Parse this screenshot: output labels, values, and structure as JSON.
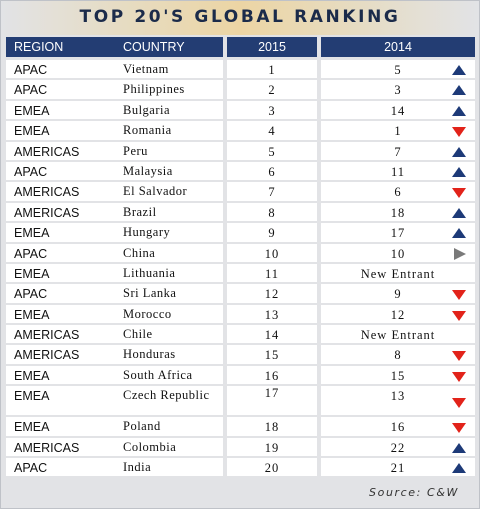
{
  "title": "TOP 20'S GLOBAL RANKING",
  "columns": {
    "region": "REGION",
    "country": "COUNTRY",
    "year_a": "2015",
    "year_b": "2014"
  },
  "colors": {
    "header_bg": "#233d73",
    "up": "#1d3a78",
    "down": "#e2231a",
    "same": "#7a7a7a"
  },
  "rows": [
    {
      "region": "APAC",
      "country": "Vietnam",
      "rank_2015": "1",
      "rank_2014": "5",
      "trend": "up-arrow-icon"
    },
    {
      "region": "APAC",
      "country": "Philippines",
      "rank_2015": "2",
      "rank_2014": "3",
      "trend": "up-arrow-icon"
    },
    {
      "region": "EMEA",
      "country": "Bulgaria",
      "rank_2015": "3",
      "rank_2014": "14",
      "trend": "up-arrow-icon"
    },
    {
      "region": "EMEA",
      "country": "Romania",
      "rank_2015": "4",
      "rank_2014": "1",
      "trend": "down-arrow-icon"
    },
    {
      "region": "AMERICAS",
      "country": "Peru",
      "rank_2015": "5",
      "rank_2014": "7",
      "trend": "up-arrow-icon"
    },
    {
      "region": "APAC",
      "country": "Malaysia",
      "rank_2015": "6",
      "rank_2014": "11",
      "trend": "up-arrow-icon"
    },
    {
      "region": "AMERICAS",
      "country": "El Salvador",
      "rank_2015": "7",
      "rank_2014": "6",
      "trend": "down-arrow-icon"
    },
    {
      "region": "AMERICAS",
      "country": "Brazil",
      "rank_2015": "8",
      "rank_2014": "18",
      "trend": "up-arrow-icon"
    },
    {
      "region": "EMEA",
      "country": "Hungary",
      "rank_2015": "9",
      "rank_2014": "17",
      "trend": "up-arrow-icon"
    },
    {
      "region": "APAC",
      "country": "China",
      "rank_2015": "10",
      "rank_2014": "10",
      "trend": "right-arrow-icon"
    },
    {
      "region": "EMEA",
      "country": "Lithuania",
      "rank_2015": "11",
      "rank_2014": "New Entrant",
      "trend": ""
    },
    {
      "region": "APAC",
      "country": "Sri Lanka",
      "rank_2015": "12",
      "rank_2014": "9",
      "trend": "down-arrow-icon"
    },
    {
      "region": "EMEA",
      "country": "Morocco",
      "rank_2015": "13",
      "rank_2014": "12",
      "trend": "down-arrow-icon"
    },
    {
      "region": "AMERICAS",
      "country": "Chile",
      "rank_2015": "14",
      "rank_2014": "New Entrant",
      "trend": ""
    },
    {
      "region": "AMERICAS",
      "country": "Honduras",
      "rank_2015": "15",
      "rank_2014": "8",
      "trend": "down-arrow-icon"
    },
    {
      "region": "EMEA",
      "country": "South Africa",
      "rank_2015": "16",
      "rank_2014": "15",
      "trend": "down-arrow-icon"
    },
    {
      "region": "EMEA",
      "country": "Czech Republic",
      "rank_2015": "17",
      "rank_2014": "13",
      "trend": "down-arrow-icon"
    },
    {
      "region": "EMEA",
      "country": "Poland",
      "rank_2015": "18",
      "rank_2014": "16",
      "trend": "down-arrow-icon"
    },
    {
      "region": "AMERICAS",
      "country": "Colombia",
      "rank_2015": "19",
      "rank_2014": "22",
      "trend": "up-arrow-icon"
    },
    {
      "region": "APAC",
      "country": "India",
      "rank_2015": "20",
      "rank_2014": "21",
      "trend": "up-arrow-icon"
    }
  ],
  "source": "Source: C&W"
}
